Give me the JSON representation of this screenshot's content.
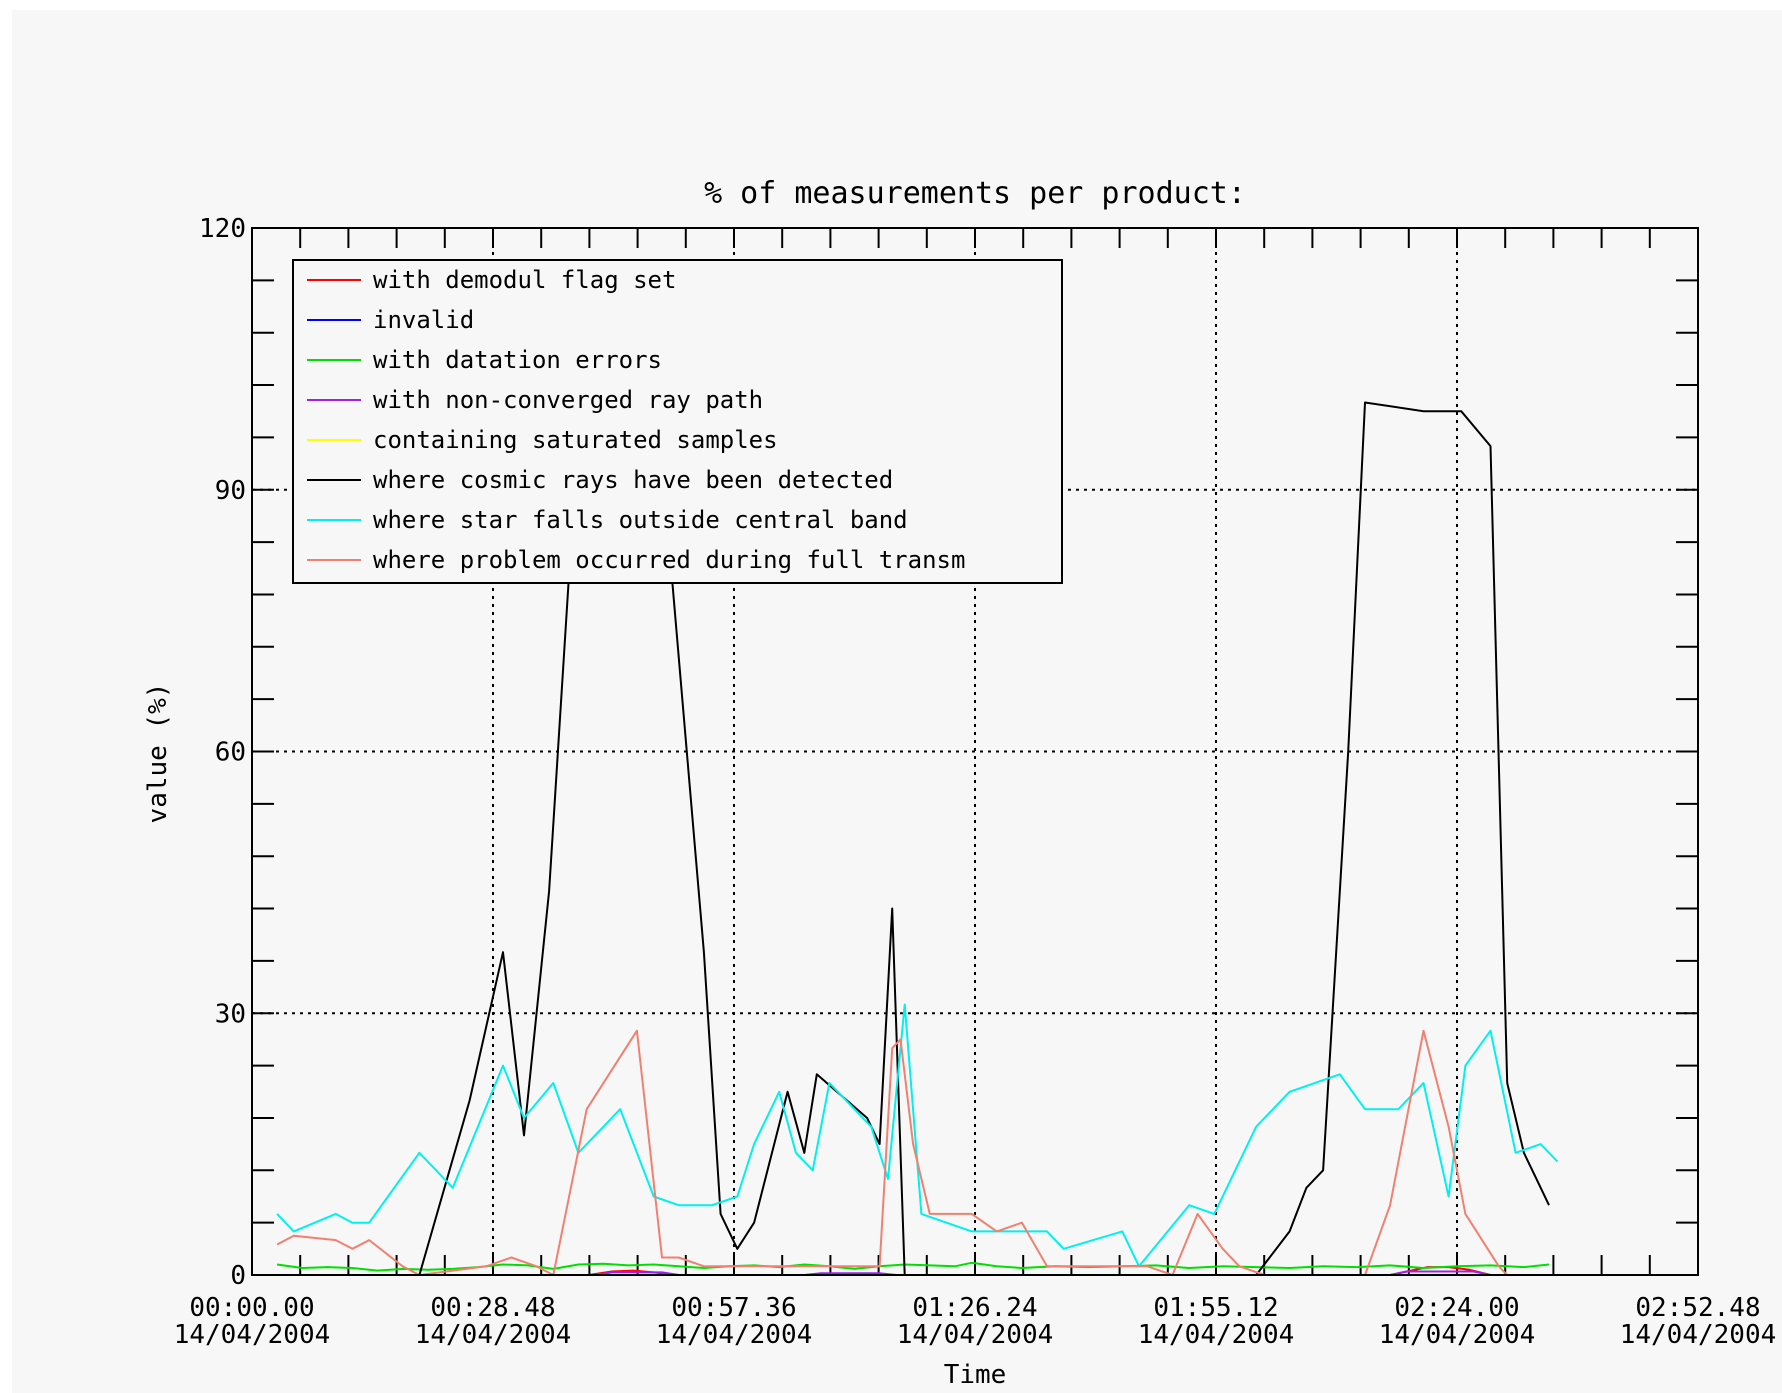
{
  "chart_data": {
    "type": "line",
    "title": "% of measurements per product:",
    "xlabel": "Time",
    "ylabel": "value (%)",
    "ylim": [
      0,
      120
    ],
    "xlim": [
      "2004-04-14 00:00:00",
      "2004-04-14 02:52:48"
    ],
    "grid": true,
    "legend_position": "top-left",
    "y_ticks": [
      {
        "value": 0,
        "label": "0"
      },
      {
        "value": 30,
        "label": "30"
      },
      {
        "value": 60,
        "label": "60"
      },
      {
        "value": 90,
        "label": "90"
      },
      {
        "value": 120,
        "label": "120"
      }
    ],
    "x_ticks": [
      {
        "time": "00:00:00",
        "label_time": "00:00.00",
        "label_date": "14/04/2004"
      },
      {
        "time": "00:28:48",
        "label_time": "00:28.48",
        "label_date": "14/04/2004"
      },
      {
        "time": "00:57:36",
        "label_time": "00:57.36",
        "label_date": "14/04/2004"
      },
      {
        "time": "01:26:24",
        "label_time": "01:26.24",
        "label_date": "14/04/2004"
      },
      {
        "time": "01:55:12",
        "label_time": "01:55.12",
        "label_date": "14/04/2004"
      },
      {
        "time": "02:24:00",
        "label_time": "02:24.00",
        "label_date": "14/04/2004"
      },
      {
        "time": "02:52:48",
        "label_time": "02:52.48",
        "label_date": "14/04/2004"
      }
    ],
    "series": [
      {
        "name": "with demodul flag set",
        "color": "#ff0000",
        "points": [
          [
            "00:40:15",
            0
          ],
          [
            "00:43:00",
            0.4
          ],
          [
            "00:45:30",
            0.5
          ],
          [
            "00:48:00",
            0.3
          ],
          [
            "00:50:30",
            0
          ],
          [
            "02:16:00",
            0
          ],
          [
            "02:18:00",
            0.4
          ],
          [
            "02:20:30",
            0.9
          ],
          [
            "02:23:00",
            0.9
          ],
          [
            "02:25:30",
            0.6
          ],
          [
            "02:28:00",
            0
          ]
        ]
      },
      {
        "name": "invalid",
        "color": "#0000ff",
        "points": [
          [
            "00:03:00",
            0
          ],
          [
            "02:35:00",
            0
          ]
        ]
      },
      {
        "name": "with datation errors",
        "color": "#00e000",
        "points": [
          [
            "00:03:00",
            1.2
          ],
          [
            "00:06:00",
            0.8
          ],
          [
            "00:09:00",
            0.9
          ],
          [
            "00:12:00",
            0.8
          ],
          [
            "00:15:00",
            0.5
          ],
          [
            "00:18:00",
            0.7
          ],
          [
            "00:21:00",
            0.6
          ],
          [
            "00:24:00",
            0.7
          ],
          [
            "00:27:00",
            0.9
          ],
          [
            "00:30:00",
            1.2
          ],
          [
            "00:33:00",
            1.1
          ],
          [
            "00:36:00",
            0.7
          ],
          [
            "00:39:00",
            1.2
          ],
          [
            "00:42:00",
            1.3
          ],
          [
            "00:45:00",
            1.1
          ],
          [
            "00:48:00",
            1.2
          ],
          [
            "00:51:00",
            1.0
          ],
          [
            "00:54:00",
            0.8
          ],
          [
            "00:57:00",
            1.0
          ],
          [
            "01:00:00",
            1.1
          ],
          [
            "01:03:00",
            0.9
          ],
          [
            "01:06:00",
            1.2
          ],
          [
            "01:09:00",
            1.0
          ],
          [
            "01:12:00",
            0.7
          ],
          [
            "01:15:00",
            1.0
          ],
          [
            "01:18:00",
            1.2
          ],
          [
            "01:21:00",
            1.1
          ],
          [
            "01:24:00",
            1.0
          ],
          [
            "01:26:00",
            1.4
          ],
          [
            "01:29:00",
            1.0
          ],
          [
            "01:32:00",
            0.8
          ],
          [
            "01:36:00",
            1.0
          ],
          [
            "01:40:00",
            0.9
          ],
          [
            "01:44:00",
            1.0
          ],
          [
            "01:48:00",
            1.1
          ],
          [
            "01:52:00",
            0.8
          ],
          [
            "01:56:00",
            1.0
          ],
          [
            "02:00:00",
            0.9
          ],
          [
            "02:04:00",
            0.8
          ],
          [
            "02:08:00",
            1.0
          ],
          [
            "02:12:00",
            0.9
          ],
          [
            "02:16:00",
            1.1
          ],
          [
            "02:20:00",
            0.8
          ],
          [
            "02:24:00",
            1.0
          ],
          [
            "02:28:00",
            1.1
          ],
          [
            "02:32:00",
            0.9
          ],
          [
            "02:35:00",
            1.2
          ]
        ]
      },
      {
        "name": "with non-converged ray path",
        "color": "#a020f0",
        "points": [
          [
            "00:20:00",
            0
          ],
          [
            "00:41:00",
            0
          ],
          [
            "00:43:00",
            0.3
          ],
          [
            "00:49:00",
            0.3
          ],
          [
            "00:51:00",
            0
          ],
          [
            "01:06:00",
            0
          ],
          [
            "01:08:00",
            0.2
          ],
          [
            "01:15:00",
            0.2
          ],
          [
            "01:17:00",
            0
          ],
          [
            "02:16:00",
            0
          ],
          [
            "02:18:00",
            0.4
          ],
          [
            "02:26:00",
            0.4
          ],
          [
            "02:28:00",
            0
          ]
        ]
      },
      {
        "name": "containing saturated samples",
        "color": "#ffff00",
        "points": [
          [
            "00:03:00",
            0
          ],
          [
            "02:35:00",
            0
          ]
        ]
      },
      {
        "name": "where cosmic rays have been detected",
        "color": "#000000",
        "points": [
          [
            "00:03:00",
            0
          ],
          [
            "00:18:00",
            0
          ],
          [
            "00:20:00",
            0
          ],
          [
            "00:26:00",
            20
          ],
          [
            "00:30:00",
            37
          ],
          [
            "00:32:30",
            16
          ],
          [
            "00:35:30",
            44
          ],
          [
            "00:38:00",
            82
          ],
          [
            "00:41:00",
            100
          ],
          [
            "00:46:00",
            100
          ],
          [
            "00:50:00",
            82
          ],
          [
            "00:54:00",
            37
          ],
          [
            "00:56:00",
            7
          ],
          [
            "00:58:00",
            3
          ],
          [
            "01:00:00",
            6
          ],
          [
            "01:04:00",
            21
          ],
          [
            "01:06:00",
            14
          ],
          [
            "01:07:30",
            23
          ],
          [
            "01:13:30",
            18
          ],
          [
            "01:15:00",
            15
          ],
          [
            "01:16:30",
            42
          ],
          [
            "01:18:00",
            0
          ],
          [
            "01:57:00",
            0
          ],
          [
            "02:00:00",
            0
          ],
          [
            "02:04:00",
            5
          ],
          [
            "02:06:00",
            10
          ],
          [
            "02:08:00",
            12
          ],
          [
            "02:11:00",
            60
          ],
          [
            "02:13:00",
            100
          ],
          [
            "02:20:00",
            99
          ],
          [
            "02:22:30",
            99
          ],
          [
            "02:24:30",
            99
          ],
          [
            "02:28:00",
            95
          ],
          [
            "02:30:00",
            22
          ],
          [
            "02:32:00",
            14
          ],
          [
            "02:34:00",
            10
          ],
          [
            "02:35:00",
            8
          ]
        ]
      },
      {
        "name": "where star falls outside central band",
        "color": "#00f0f0",
        "points": [
          [
            "00:03:00",
            7
          ],
          [
            "00:05:00",
            5
          ],
          [
            "00:10:00",
            7
          ],
          [
            "00:12:00",
            6
          ],
          [
            "00:14:00",
            6
          ],
          [
            "00:20:00",
            14
          ],
          [
            "00:24:00",
            10
          ],
          [
            "00:30:00",
            24
          ],
          [
            "00:32:30",
            18
          ],
          [
            "00:36:00",
            22
          ],
          [
            "00:39:00",
            14
          ],
          [
            "00:44:00",
            19
          ],
          [
            "00:48:00",
            9
          ],
          [
            "00:51:00",
            8
          ],
          [
            "00:55:00",
            8
          ],
          [
            "00:58:00",
            9
          ],
          [
            "01:00:00",
            15
          ],
          [
            "01:03:00",
            21
          ],
          [
            "01:05:00",
            14
          ],
          [
            "01:07:00",
            12
          ],
          [
            "01:09:00",
            22
          ],
          [
            "01:14:00",
            17
          ],
          [
            "01:16:00",
            11
          ],
          [
            "01:18:00",
            31
          ],
          [
            "01:20:00",
            7
          ],
          [
            "01:26:00",
            5
          ],
          [
            "01:28:00",
            5
          ],
          [
            "01:32:00",
            5
          ],
          [
            "01:35:00",
            5
          ],
          [
            "01:37:00",
            3
          ],
          [
            "01:44:00",
            5
          ],
          [
            "01:46:00",
            1
          ],
          [
            "01:52:00",
            8
          ],
          [
            "01:55:00",
            7
          ],
          [
            "02:00:00",
            17
          ],
          [
            "02:04:00",
            21
          ],
          [
            "02:10:00",
            23
          ],
          [
            "02:13:00",
            19
          ],
          [
            "02:17:00",
            19
          ],
          [
            "02:20:00",
            22
          ],
          [
            "02:23:00",
            9
          ],
          [
            "02:25:00",
            24
          ],
          [
            "02:28:00",
            28
          ],
          [
            "02:31:00",
            14
          ],
          [
            "02:34:00",
            15
          ],
          [
            "02:36:00",
            13
          ]
        ]
      },
      {
        "name": "where problem occurred during full transm",
        "color": "#f08070",
        "points": [
          [
            "00:03:00",
            3.5
          ],
          [
            "00:05:00",
            4.5
          ],
          [
            "00:10:00",
            4
          ],
          [
            "00:12:00",
            3
          ],
          [
            "00:14:00",
            4
          ],
          [
            "00:18:00",
            1
          ],
          [
            "00:20:00",
            0
          ],
          [
            "00:28:00",
            1
          ],
          [
            "00:31:00",
            2
          ],
          [
            "00:34:00",
            1
          ],
          [
            "00:36:00",
            0
          ],
          [
            "00:40:00",
            19
          ],
          [
            "00:46:00",
            28
          ],
          [
            "00:49:00",
            2
          ],
          [
            "00:51:00",
            2
          ],
          [
            "00:54:00",
            1
          ],
          [
            "00:56:00",
            1
          ],
          [
            "01:13:00",
            1
          ],
          [
            "01:15:00",
            1
          ],
          [
            "01:16:30",
            26
          ],
          [
            "01:17:30",
            27
          ],
          [
            "01:19:00",
            15
          ],
          [
            "01:21:00",
            7
          ],
          [
            "01:26:00",
            7
          ],
          [
            "01:29:00",
            5
          ],
          [
            "01:32:00",
            6
          ],
          [
            "01:35:00",
            1
          ],
          [
            "01:38:00",
            1
          ],
          [
            "01:44:00",
            1
          ],
          [
            "01:47:00",
            1
          ],
          [
            "01:50:00",
            0
          ],
          [
            "01:53:00",
            7
          ],
          [
            "01:56:00",
            3
          ],
          [
            "01:58:00",
            1
          ],
          [
            "02:01:00",
            0
          ],
          [
            "02:13:00",
            0
          ],
          [
            "02:16:00",
            8
          ],
          [
            "02:20:00",
            28
          ],
          [
            "02:23:00",
            17
          ],
          [
            "02:25:00",
            7
          ],
          [
            "02:29:00",
            1
          ],
          [
            "02:30:00",
            0
          ],
          [
            "02:35:00",
            0
          ]
        ]
      }
    ]
  }
}
